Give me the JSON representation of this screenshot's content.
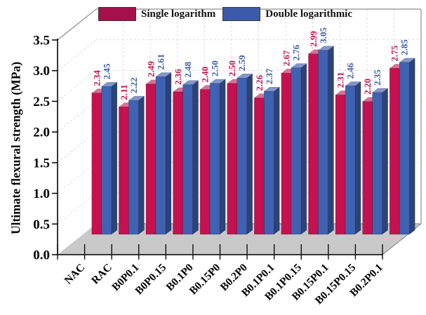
{
  "legend": {
    "items": [
      {
        "label": "Single logarithm",
        "color": "#a5104a"
      },
      {
        "label": "Double logarithmic",
        "color": "#3b5ba6"
      }
    ]
  },
  "axes": {
    "y_title": "Ultimate flexural strength (MPa)",
    "y_ticklabels": [
      "0.0",
      "0.5",
      "1.0",
      "1.5",
      "2.0",
      "2.5",
      "3.0",
      "3.5"
    ]
  },
  "colors": {
    "floor": "#c9c9c9",
    "frame": "#8f8f8f",
    "grid": "#d8d8d8",
    "axis": "#000000",
    "background": "#ffffff"
  },
  "chart_data": {
    "type": "bar",
    "style": "3d-grouped",
    "title": "",
    "xlabel": "",
    "ylabel": "Ultimate flexural strength (MPa)",
    "ylim": [
      0,
      3.5
    ],
    "ytick_step": 0.5,
    "grid": "dashed",
    "legend_position": "top",
    "xtick_rotation": 45,
    "value_label_rotation": 90,
    "categories": [
      "NAC",
      "RAC",
      "B0P0.1",
      "B0P0.15",
      "B0.1P0",
      "B0.15P0",
      "B0.2P0",
      "B0.1P0.1",
      "B0.1P0.15",
      "B0.15P0.1",
      "B0.15P0.15",
      "B0.2P0.1"
    ],
    "series": [
      {
        "name": "Single logarithm",
        "color": "#c5114f",
        "color_side": "#8e0c3a",
        "color_top": "#de6e96",
        "label_color": "#c2134e",
        "values": [
          2.34,
          2.11,
          2.49,
          2.36,
          2.4,
          2.5,
          2.26,
          2.67,
          2.99,
          2.31,
          2.2,
          2.75
        ]
      },
      {
        "name": "Double logarithmic",
        "color": "#3f62b2",
        "color_side": "#2b4379",
        "color_top": "#8296cc",
        "label_color": "#3e5da8",
        "values": [
          2.45,
          2.22,
          2.61,
          2.48,
          2.5,
          2.59,
          2.37,
          2.76,
          3.05,
          2.46,
          2.35,
          2.85
        ]
      }
    ]
  }
}
